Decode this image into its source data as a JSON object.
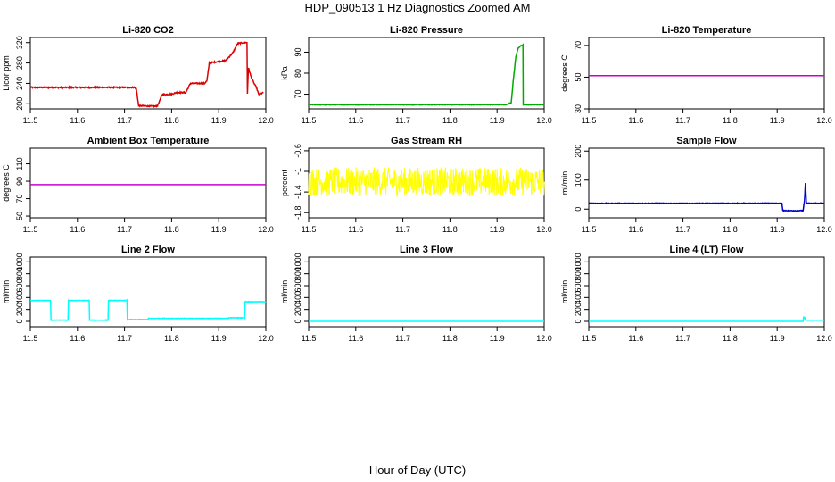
{
  "page": {
    "main_title": "HDP_090513  1 Hz Diagnostics Zoomed AM",
    "x_label": "Hour of Day (UTC)"
  },
  "chart_data": [
    {
      "id": "co2",
      "type": "line",
      "title": "Li-820 CO2",
      "ylabel": "Licor ppm",
      "color": "#dd0000",
      "xlim": [
        11.5,
        12.0
      ],
      "ylim": [
        190,
        330
      ],
      "yticks": [
        200,
        240,
        280,
        320
      ],
      "xticks": [
        "11.5",
        "11.6",
        "11.7",
        "11.8",
        "11.9",
        "12.0"
      ],
      "series": {
        "x": [
          11.5,
          11.64,
          11.72,
          11.725,
          11.73,
          11.765,
          11.77,
          11.78,
          11.8,
          11.81,
          11.83,
          11.84,
          11.87,
          11.875,
          11.88,
          11.9,
          11.91,
          11.915,
          11.93,
          11.94,
          11.945,
          11.955,
          11.96,
          11.961,
          11.963,
          11.965,
          11.968,
          11.975,
          11.98,
          11.985,
          11.99,
          11.995
        ],
        "y": [
          232,
          232,
          232,
          230,
          196,
          195,
          196,
          218,
          219,
          222,
          222,
          240,
          240,
          245,
          280,
          283,
          284,
          285,
          300,
          318,
          319,
          320,
          320,
          220,
          270,
          265,
          255,
          240,
          232,
          218,
          220,
          222
        ]
      },
      "noise": 1.2
    },
    {
      "id": "pressure",
      "type": "line",
      "title": "Li-820 Pressure",
      "ylabel": "kPa",
      "color": "#00aa00",
      "xlim": [
        11.5,
        12.0
      ],
      "ylim": [
        63,
        97
      ],
      "yticks": [
        70,
        80,
        90
      ],
      "xticks": [
        "11.5",
        "11.6",
        "11.7",
        "11.8",
        "11.9",
        "12.0"
      ],
      "series": {
        "x": [
          11.5,
          11.92,
          11.93,
          11.935,
          11.94,
          11.945,
          11.95,
          11.955,
          11.9555,
          11.96,
          11.97,
          11.975,
          12.0
        ],
        "y": [
          65,
          65,
          66,
          78,
          88,
          92,
          93,
          93.5,
          65,
          65,
          65,
          65,
          65
        ]
      },
      "noise": 0.15
    },
    {
      "id": "licor_temp",
      "type": "line",
      "title": "Li-820 Temperature",
      "ylabel": "degrees C",
      "color": "#cc00cc",
      "xlim": [
        11.5,
        12.0
      ],
      "ylim": [
        30,
        75
      ],
      "yticks": [
        30,
        50,
        70
      ],
      "xticks": [
        "11.5",
        "11.6",
        "11.7",
        "11.8",
        "11.9",
        "12.0"
      ],
      "series": {
        "x": [
          11.5,
          12.0
        ],
        "y": [
          51,
          51
        ]
      },
      "noise": 0
    },
    {
      "id": "box_temp",
      "type": "line",
      "title": "Ambient Box Temperature",
      "ylabel": "degrees C",
      "color": "#cc00cc",
      "xlim": [
        11.5,
        12.0
      ],
      "ylim": [
        48,
        128
      ],
      "yticks": [
        50,
        70,
        90,
        110
      ],
      "xticks": [
        "11.5",
        "11.6",
        "11.7",
        "11.8",
        "11.9",
        "12.0"
      ],
      "series": {
        "x": [
          11.5,
          12.0
        ],
        "y": [
          86,
          86
        ]
      },
      "noise": 0
    },
    {
      "id": "rh",
      "type": "line",
      "title": "Gas Stream RH",
      "ylabel": "percent",
      "color": "#ffff00",
      "xlim": [
        11.5,
        12.0
      ],
      "ylim": [
        -1.9,
        -0.55
      ],
      "yticks": [
        -1.8,
        -1.4,
        -1.0,
        -0.6
      ],
      "xticks": [
        "11.5",
        "11.6",
        "11.7",
        "11.8",
        "11.9",
        "12.0"
      ],
      "series": {
        "x": [
          11.5,
          12.0
        ],
        "y": [
          -1.2,
          -1.2
        ]
      },
      "noise": 0.28
    },
    {
      "id": "sample_flow",
      "type": "line",
      "title": "Sample Flow",
      "ylabel": "ml/min",
      "color": "#0000cc",
      "xlim": [
        11.5,
        12.0
      ],
      "ylim": [
        -30,
        210
      ],
      "yticks": [
        0,
        100,
        200
      ],
      "xticks": [
        "11.5",
        "11.6",
        "11.7",
        "11.8",
        "11.9",
        "12.0"
      ],
      "series": {
        "x": [
          11.5,
          11.91,
          11.912,
          11.945,
          11.95,
          11.955,
          11.958,
          11.96,
          11.962,
          11.965,
          11.97,
          12.0
        ],
        "y": [
          20,
          20,
          -5,
          -6,
          -5,
          -6,
          30,
          90,
          20,
          20,
          20,
          20
        ]
      },
      "noise": 1.0
    },
    {
      "id": "line2",
      "type": "line",
      "title": "Line 2 Flow",
      "ylabel": "ml/min",
      "color": "#00ffff",
      "xlim": [
        11.5,
        12.0
      ],
      "ylim": [
        -90,
        1080
      ],
      "yticks": [
        0,
        200,
        400,
        600,
        800,
        1000
      ],
      "xticks": [
        "11.5",
        "11.6",
        "11.7",
        "11.8",
        "11.9",
        "12.0"
      ],
      "series": {
        "x": [
          11.5,
          11.543,
          11.544,
          11.58,
          11.581,
          11.625,
          11.626,
          11.665,
          11.666,
          11.705,
          11.706,
          11.75,
          11.751,
          11.92,
          11.921,
          11.955,
          11.956,
          12.0
        ],
        "y": [
          350,
          350,
          20,
          20,
          350,
          350,
          20,
          20,
          350,
          350,
          30,
          30,
          50,
          50,
          60,
          60,
          330,
          330
        ]
      },
      "noise": 4
    },
    {
      "id": "line3",
      "type": "line",
      "title": "Line 3 Flow",
      "ylabel": "ml/min",
      "color": "#00ffff",
      "xlim": [
        11.5,
        12.0
      ],
      "ylim": [
        -90,
        1080
      ],
      "yticks": [
        0,
        200,
        400,
        600,
        800,
        1000
      ],
      "xticks": [
        "11.5",
        "11.6",
        "11.7",
        "11.8",
        "11.9",
        "12.0"
      ],
      "series": {
        "x": [
          11.5,
          12.0
        ],
        "y": [
          0,
          0
        ]
      },
      "noise": 0
    },
    {
      "id": "line4",
      "type": "line",
      "title": "Line 4 (LT) Flow",
      "ylabel": "ml/min",
      "color": "#00ffff",
      "xlim": [
        11.5,
        12.0
      ],
      "ylim": [
        -90,
        1080
      ],
      "yticks": [
        0,
        200,
        400,
        600,
        800,
        1000
      ],
      "xticks": [
        "11.5",
        "11.6",
        "11.7",
        "11.8",
        "11.9",
        "12.0"
      ],
      "series": {
        "x": [
          11.5,
          11.955,
          11.956,
          11.958,
          11.96,
          12.0
        ],
        "y": [
          0,
          0,
          70,
          70,
          20,
          20
        ]
      },
      "noise": 0
    }
  ]
}
